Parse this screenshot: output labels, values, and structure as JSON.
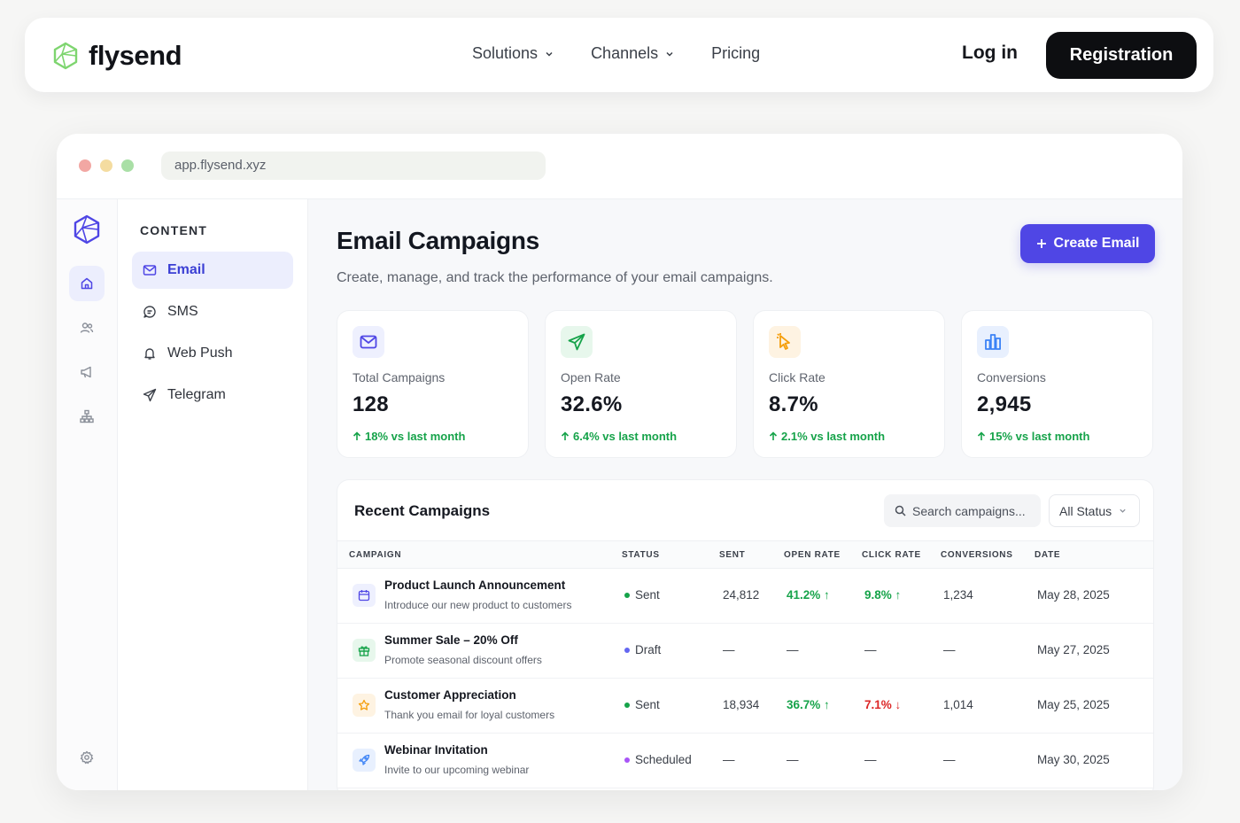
{
  "brand": {
    "name": "flysend",
    "logo_icon": "hexagon-logo-icon",
    "accent": "#4f46e5",
    "logo_color": "#7ed56f"
  },
  "nav": {
    "links": [
      {
        "label": "Solutions",
        "has_dropdown": true
      },
      {
        "label": "Channels",
        "has_dropdown": true
      },
      {
        "label": "Pricing",
        "has_dropdown": false
      }
    ],
    "login": "Log in",
    "register": "Registration"
  },
  "browser": {
    "url": "app.flysend.xyz"
  },
  "sidebar": {
    "section_title": "CONTENT",
    "items": [
      {
        "label": "Email",
        "icon": "mail-icon",
        "active": true
      },
      {
        "label": "SMS",
        "icon": "chat-icon",
        "active": false
      },
      {
        "label": "Web Push",
        "icon": "bell-icon",
        "active": false
      },
      {
        "label": "Telegram",
        "icon": "send-icon",
        "active": false
      }
    ]
  },
  "page": {
    "title": "Email Campaigns",
    "subtitle": "Create, manage, and track the performance of your email campaigns.",
    "create_button": "Create Email"
  },
  "stats": [
    {
      "label": "Total Campaigns",
      "value": "128",
      "change": "18% vs last month",
      "icon": "mail-icon",
      "color": "#4f46e5"
    },
    {
      "label": "Open Rate",
      "value": "32.6%",
      "change": "6.4% vs last month",
      "icon": "send-icon",
      "color": "#16a34a"
    },
    {
      "label": "Click Rate",
      "value": "8.7%",
      "change": "2.1% vs last month",
      "icon": "cursor-icon",
      "color": "#f59e0b"
    },
    {
      "label": "Conversions",
      "value": "2,945",
      "change": "15% vs last month",
      "icon": "bar-chart-icon",
      "color": "#3b82f6"
    }
  ],
  "recent": {
    "title": "Recent Campaigns",
    "search_placeholder": "Search campaigns...",
    "status_filter": "All Status",
    "columns": [
      "CAMPAIGN",
      "STATUS",
      "SENT",
      "OPEN RATE",
      "CLICK RATE",
      "CONVERSIONS",
      "DATE"
    ],
    "rows": [
      {
        "name": "Product Launch Announcement",
        "desc": "Introduce our new product to customers",
        "status": "Sent",
        "sent": "24,812",
        "open_rate": "41.2%",
        "click_rate": "9.8%",
        "conversions": "1,234",
        "date": "May 28, 2025"
      },
      {
        "name": "Summer Sale – 20% Off",
        "desc": "Promote seasonal discount offers",
        "status": "Draft",
        "sent": "—",
        "open_rate": "—",
        "click_rate": "—",
        "conversions": "—",
        "date": "May 27, 2025"
      },
      {
        "name": "Customer Appreciation",
        "desc": "Thank you email for loyal customers",
        "status": "Sent",
        "sent": "18,934",
        "open_rate": "36.7%",
        "click_rate": "7.1%",
        "conversions": "1,014",
        "date": "May 25, 2025"
      },
      {
        "name": "Webinar Invitation",
        "desc": "Invite to our upcoming webinar",
        "status": "Scheduled",
        "sent": "—",
        "open_rate": "—",
        "click_rate": "—",
        "conversions": "—",
        "date": "May 30, 2025"
      }
    ]
  }
}
